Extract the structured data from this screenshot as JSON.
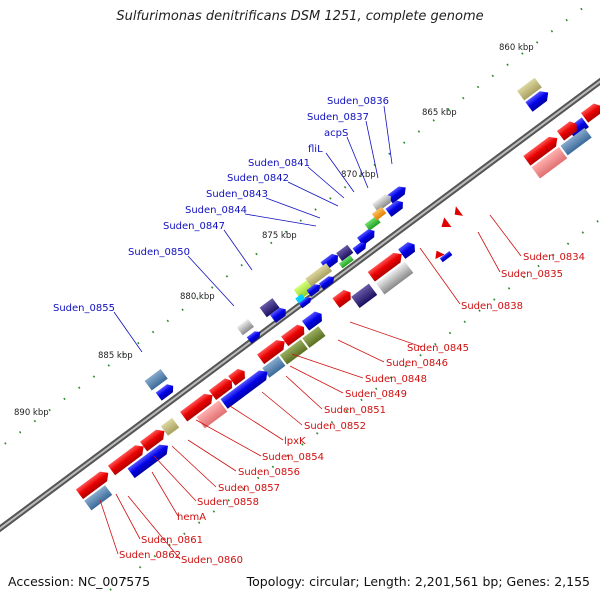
{
  "title": "Sulfurimonas denitrificans DSM 1251, complete genome",
  "accession": "Accession: NC_007575",
  "topology": "Topology: circular; Length: 2,201,561 bp; Genes: 2,155",
  "ticks": [
    "860 kbp",
    "865 kbp",
    "870 kbp",
    "875 kbp",
    "880 kbp",
    "885 kbp",
    "890 kbp"
  ],
  "labels_blue": [
    "Suden_0836",
    "Suden_0837",
    "acpS",
    "fliL",
    "Suden_0841",
    "Suden_0842",
    "Suden_0843",
    "Suden_0844",
    "Suden_0847",
    "Suden_0850",
    "Suden_0855"
  ],
  "labels_red": [
    "Suden_0834",
    "Suden_0835",
    "Suden_0838",
    "Suden_0845",
    "Suden_0846",
    "Suden_0848",
    "Suden_0849",
    "Suden_0851",
    "Suden_0852",
    "lpxK",
    "Suden_0854",
    "Suden_0856",
    "Suden_0857",
    "Suden_0858",
    "hemA",
    "Suden_0861",
    "Suden_0862",
    "Suden_0860"
  ],
  "colors": {
    "forward_label": "#1010c0",
    "reverse_label": "#d01010",
    "tick": "#2a8a2a",
    "backbone": "#777777"
  }
}
